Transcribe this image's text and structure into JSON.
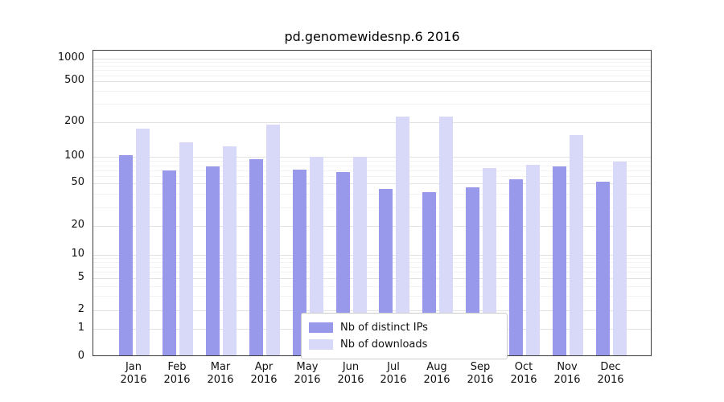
{
  "title": "pd.genomewidesnp.6 2016",
  "chart_data": {
    "type": "bar",
    "title": "pd.genomewidesnp.6 2016",
    "scale": "log-like",
    "grid": true,
    "legend_position": "lower center",
    "categories": [
      "Jan 2016",
      "Feb 2016",
      "Mar 2016",
      "Apr 2016",
      "May 2016",
      "Jun 2016",
      "Jul 2016",
      "Aug 2016",
      "Sep 2016",
      "Oct 2016",
      "Nov 2016",
      "Dec 2016"
    ],
    "y_ticks": [
      0,
      1,
      2,
      5,
      10,
      20,
      50,
      100,
      200,
      500,
      1000
    ],
    "ylim": [
      0,
      1400
    ],
    "series": [
      {
        "name": "Nb of distinct IPs",
        "color": "#9999eb",
        "values": [
          100,
          67,
          75,
          90,
          68,
          65,
          43,
          40,
          44,
          53,
          75,
          50
        ]
      },
      {
        "name": "Nb of downloads",
        "color": "#d8d8f8",
        "values": [
          170,
          130,
          120,
          185,
          95,
          95,
          220,
          220,
          72,
          78,
          150,
          85
        ]
      }
    ]
  },
  "colors": {
    "distinct_ips_bar": "#9999eb",
    "downloads_bar": "#d8d8f8",
    "grid_major": "#e2e2e2",
    "grid_minor": "#f3f3f3"
  }
}
